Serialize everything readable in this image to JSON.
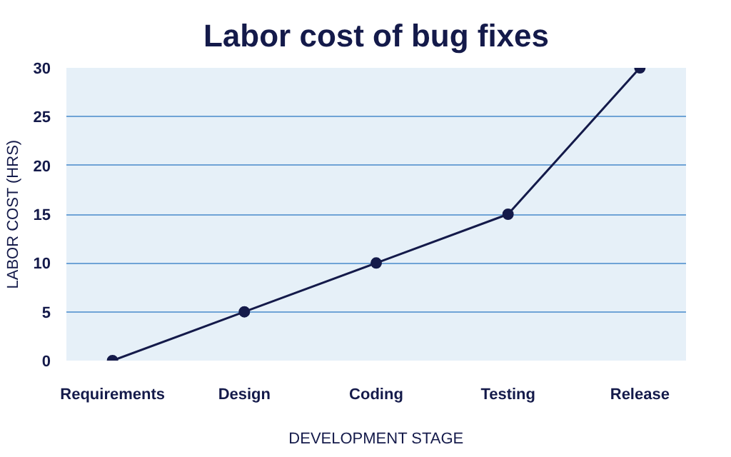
{
  "chart_data": {
    "type": "line",
    "title": "Labor cost of bug fixes",
    "xlabel": "DEVELOPMENT STAGE",
    "ylabel": "LABOR COST (HRS)",
    "categories": [
      "Requirements",
      "Design",
      "Coding",
      "Testing",
      "Release"
    ],
    "series": [
      {
        "color": "#141a4a",
        "values": [
          0,
          5,
          10,
          15,
          30
        ]
      }
    ],
    "ylim": [
      0,
      30
    ],
    "yticks": [
      0,
      5,
      10,
      15,
      20,
      25,
      30
    ],
    "grid": "y",
    "marker": "circle",
    "line_style": "solid"
  }
}
